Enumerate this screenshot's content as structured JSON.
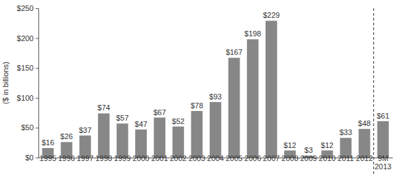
{
  "chart_data": {
    "type": "bar",
    "y_label": "($ in billions)",
    "categories": [
      "1995",
      "1996",
      "1997",
      "1998",
      "1999",
      "2000",
      "2001",
      "2002",
      "2003",
      "2004",
      "2005",
      "2006",
      "2007",
      "2008",
      "2009",
      "2010",
      "2011",
      "2012",
      "9M 2013"
    ],
    "values": [
      16,
      26,
      37,
      74,
      57,
      47,
      67,
      52,
      78,
      93,
      167,
      198,
      229,
      12,
      3,
      12,
      33,
      48,
      61
    ],
    "value_labels": [
      "$16",
      "$26",
      "$37",
      "$74",
      "$57",
      "$47",
      "$67",
      "$52",
      "$78",
      "$93",
      "$167",
      "$198",
      "$229",
      "$12",
      "$3",
      "$12",
      "$33",
      "$48",
      "$61"
    ],
    "color": "#878787",
    "ylim": [
      0,
      250
    ],
    "yticks": [
      {
        "value": 0,
        "label": "$0"
      },
      {
        "value": 50,
        "label": "$50"
      },
      {
        "value": 100,
        "label": "$100"
      },
      {
        "value": 150,
        "label": "$150"
      },
      {
        "value": 200,
        "label": "$200"
      },
      {
        "value": 250,
        "label": "$250"
      }
    ],
    "grid": false,
    "data_labels": true
  }
}
